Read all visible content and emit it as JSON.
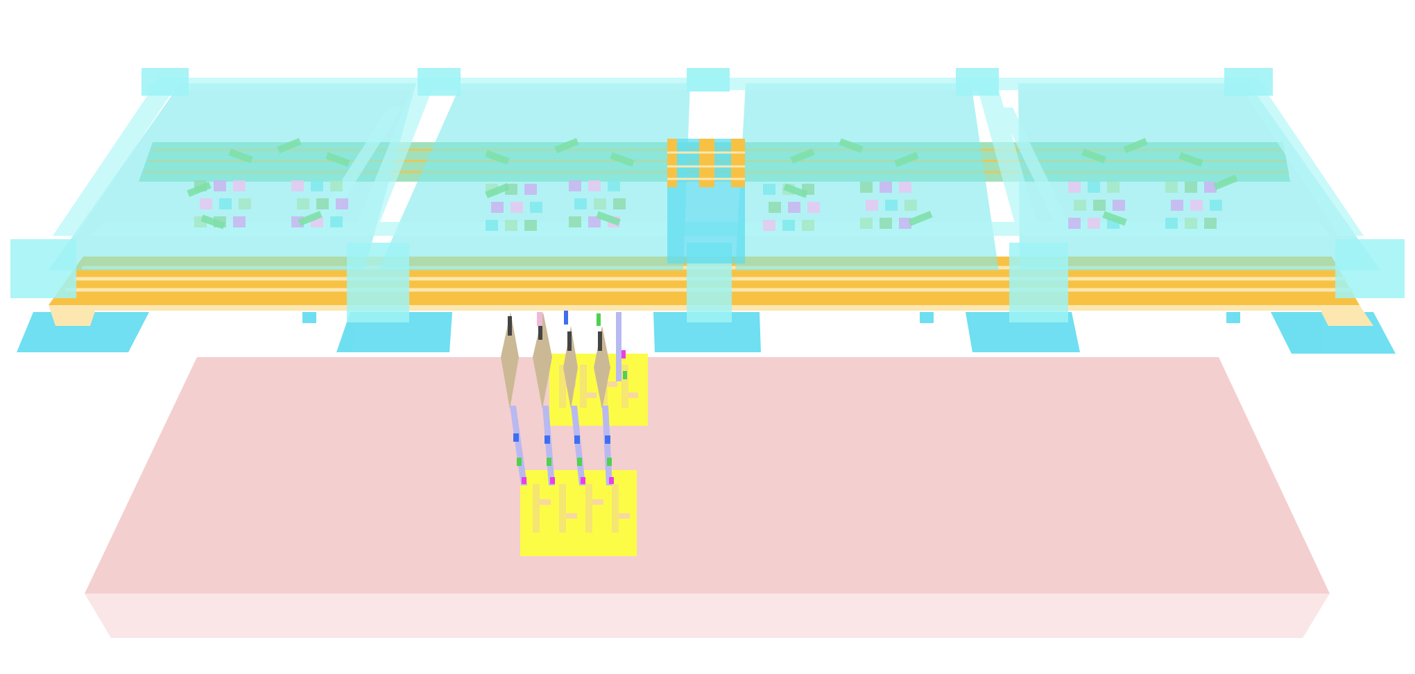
{
  "scene": {
    "colors": {
      "background": "#ffffff",
      "substrate_top": "#f4cfcf",
      "substrate_front": "#fae6e6",
      "cyan_plate": "#7fe9ec",
      "cyan_frame": "#9ff3f5",
      "cyan_pad": "#5fdcef",
      "gold": "#f7c244",
      "gold_light": "#fde7b0",
      "green": "#8fdcaf",
      "yellow_block": "#fcfc46",
      "wire_tan": "#cbb995",
      "wire_lavender": "#b9b9f2",
      "wire_pink": "#f0b8d8",
      "accent_magenta": "#ea3fe8",
      "accent_blue": "#3f6ff0",
      "accent_green": "#4fd14f"
    }
  }
}
